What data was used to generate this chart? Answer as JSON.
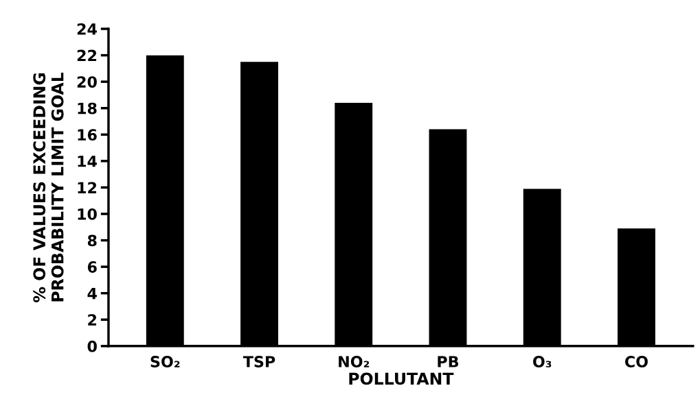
{
  "chart_data": {
    "type": "bar",
    "xlabel": "POLLUTANT",
    "ylabel": "% OF VALUES EXCEEDING\nPROBABILITY LIMIT GOAL",
    "categories": [
      "SO₂",
      "TSP",
      "NO₂",
      "PB",
      "O₃",
      "CO"
    ],
    "values": [
      22,
      21.5,
      18.4,
      16.4,
      11.9,
      8.9
    ],
    "color": "#000000",
    "ylim": [
      0,
      24
    ],
    "yticks": [
      0,
      2,
      4,
      6,
      8,
      10,
      12,
      14,
      16,
      18,
      20,
      22,
      24
    ],
    "grid": false,
    "legend": false
  }
}
